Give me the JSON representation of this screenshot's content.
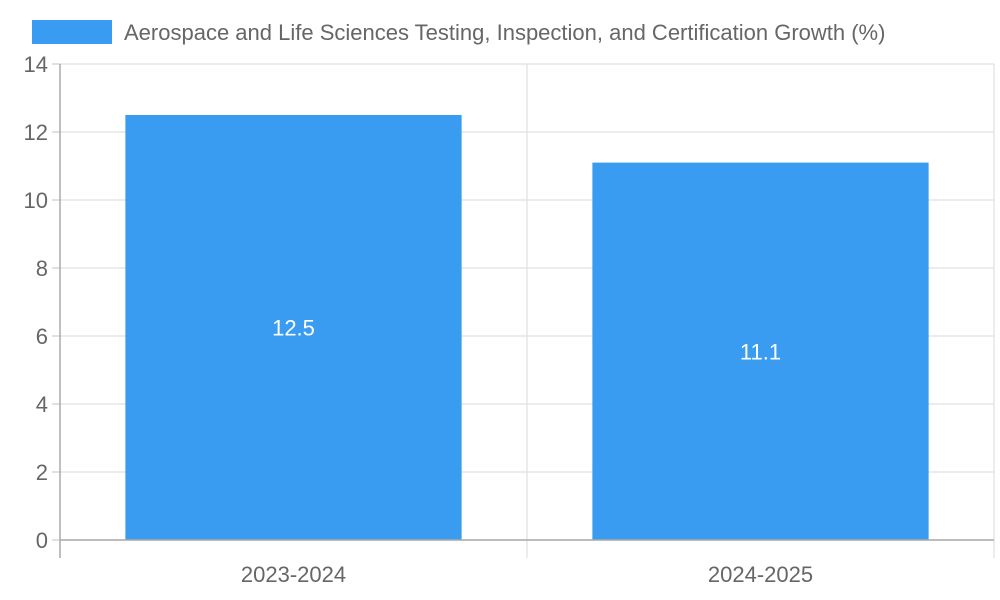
{
  "chart_data": {
    "type": "bar",
    "categories": [
      "2023-2024",
      "2024-2025"
    ],
    "series": [
      {
        "name": "Aerospace and Life Sciences Testing, Inspection, and Certification Growth (%)",
        "values": [
          12.5,
          11.1
        ],
        "color": "#399CF1"
      }
    ],
    "ylim": [
      0,
      14
    ],
    "yticks": [
      "0",
      "2",
      "4",
      "6",
      "8",
      "10",
      "12",
      "14"
    ],
    "grid": true,
    "legend_position": "top",
    "data_labels": [
      "12.5",
      "11.1"
    ]
  }
}
